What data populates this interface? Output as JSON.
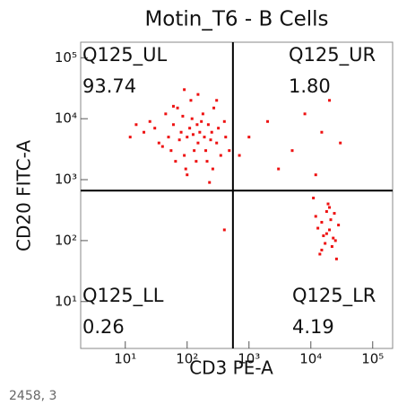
{
  "chart_data": {
    "type": "scatter",
    "title": "Motin_T6 - B Cells",
    "xlabel": "CD3 PE-A",
    "ylabel": "CD20 FITC-A",
    "footer": "2458, 3",
    "xscale": "log",
    "yscale": "log",
    "xlim": [
      1.9,
      210000
    ],
    "ylim": [
      1.7,
      180000
    ],
    "xticks": [
      {
        "value": 10,
        "label": "10¹"
      },
      {
        "value": 100,
        "label": "10²"
      },
      {
        "value": 1000,
        "label": "10³"
      },
      {
        "value": 10000,
        "label": "10⁴"
      },
      {
        "value": 100000,
        "label": "10⁵"
      }
    ],
    "yticks": [
      {
        "value": 10,
        "label": "10¹"
      },
      {
        "value": 100,
        "label": "10²"
      },
      {
        "value": 1000,
        "label": "10³"
      },
      {
        "value": 10000,
        "label": "10⁴"
      },
      {
        "value": 100000,
        "label": "10⁵"
      }
    ],
    "gate_x": 550,
    "gate_y": 660,
    "quadrants": [
      {
        "name": "Q125_UL",
        "value": 93.74,
        "corner": "upper-left"
      },
      {
        "name": "Q125_UR",
        "value": 1.8,
        "value_label": "1.80",
        "corner": "upper-right"
      },
      {
        "name": "Q125_LL",
        "value": 0.26,
        "corner": "lower-left"
      },
      {
        "name": "Q125_LR",
        "value": 4.19,
        "corner": "lower-right"
      }
    ],
    "series": [
      {
        "color": "#ee1111",
        "x": [
          100,
          150,
          80,
          200,
          60,
          120,
          250,
          300,
          40,
          30,
          90,
          180,
          70,
          140,
          220,
          350,
          110,
          50,
          25,
          160,
          400,
          130,
          85,
          65,
          190,
          270,
          45,
          95,
          210,
          115,
          320,
          55,
          170,
          240,
          75,
          35,
          125,
          145,
          100,
          300,
          20,
          260,
          60,
          420,
          150,
          12,
          15,
          230,
          90,
          480,
          1000,
          2000,
          5000,
          15000,
          20000,
          3000,
          700,
          12000,
          30000,
          8000,
          15000,
          20000,
          18000,
          25000,
          12000,
          22000,
          16000,
          28000,
          19000,
          14000,
          21000,
          17000,
          24000,
          13000,
          26000,
          18000,
          20000,
          23000,
          15000,
          11000,
          400
        ],
        "values": [
          5000,
          4000,
          6000,
          3000,
          8000,
          10000,
          6000,
          4000,
          3500,
          7000,
          2500,
          12000,
          15000,
          2000,
          8000,
          2500,
          7000,
          5000,
          9000,
          6000,
          9000,
          3000,
          11000,
          2000,
          5000,
          15000,
          12000,
          1500,
          2000,
          20000,
          7000,
          3000,
          9000,
          4500,
          4500,
          4000,
          5500,
          8000,
          1200,
          20000,
          6000,
          1500,
          16000,
          5000,
          25000,
          5000,
          8000,
          900,
          30000,
          3000,
          5000,
          9000,
          3000,
          6000,
          20000,
          1500,
          2500,
          1200,
          4000,
          12000,
          200,
          150,
          300,
          100,
          250,
          80,
          120,
          180,
          400,
          60,
          220,
          90,
          280,
          160,
          50,
          130,
          350,
          110,
          70,
          500,
          150
        ]
      }
    ]
  }
}
